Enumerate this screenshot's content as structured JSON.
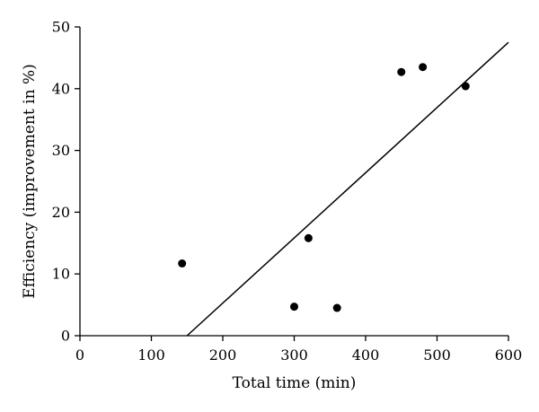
{
  "chart_data": {
    "type": "scatter",
    "xlabel": "Total time (min)",
    "ylabel": "Efficiency (improvement in %)",
    "xlim": [
      0,
      600
    ],
    "ylim": [
      0,
      50
    ],
    "xticks": [
      0,
      100,
      200,
      300,
      400,
      500,
      600
    ],
    "yticks": [
      0,
      10,
      20,
      30,
      40,
      50
    ],
    "grid": false,
    "points": [
      {
        "x": 143,
        "y": 11.7
      },
      {
        "x": 300,
        "y": 4.7
      },
      {
        "x": 320,
        "y": 15.8
      },
      {
        "x": 360,
        "y": 4.5
      },
      {
        "x": 450,
        "y": 42.7
      },
      {
        "x": 480,
        "y": 43.5
      },
      {
        "x": 540,
        "y": 40.4
      }
    ],
    "fit_line": {
      "x": [
        150,
        600
      ],
      "y": [
        0,
        47.5
      ]
    }
  }
}
